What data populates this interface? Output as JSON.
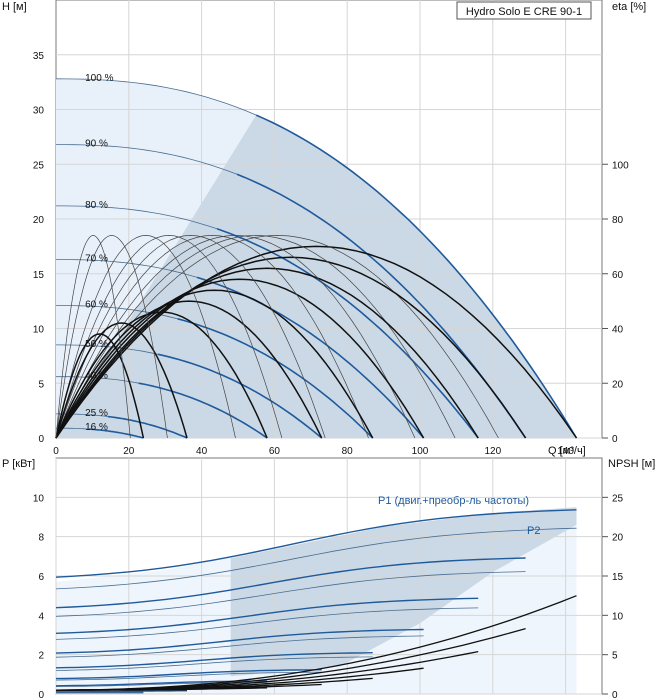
{
  "chart_data": [
    {
      "type": "line",
      "title": "Hydro Solo E CRE 90-1",
      "xlabel": "Q [м³/ч]",
      "ylabel": "H [м]",
      "y2label": "eta [%]",
      "xlim": [
        0,
        150
      ],
      "ylim": [
        0,
        40
      ],
      "y2lim": [
        0,
        160
      ],
      "x_ticks": [
        0,
        20,
        40,
        60,
        80,
        100,
        120,
        140
      ],
      "y_ticks": [
        0,
        5,
        10,
        15,
        20,
        25,
        30,
        35
      ],
      "y2_ticks": [
        0,
        20,
        40,
        60,
        80,
        100
      ],
      "speed_curves": [
        {
          "label": "100 %",
          "shutoff_head": 32.8,
          "max_flow": 143
        },
        {
          "label": "90 %",
          "shutoff_head": 26.8,
          "max_flow": 129
        },
        {
          "label": "80 %",
          "shutoff_head": 21.2,
          "max_flow": 116
        },
        {
          "label": "70 %",
          "shutoff_head": 16.3,
          "max_flow": 101
        },
        {
          "label": "60 %",
          "shutoff_head": 12.1,
          "max_flow": 87
        },
        {
          "label": "50 %",
          "shutoff_head": 8.5,
          "max_flow": 73
        },
        {
          "label": "40 %",
          "shutoff_head": 5.6,
          "max_flow": 58
        },
        {
          "label": "25 %",
          "shutoff_head": 2.2,
          "max_flow": 36
        },
        {
          "label": "16 %",
          "shutoff_head": 0.9,
          "max_flow": 24
        }
      ]
    },
    {
      "type": "line",
      "xlabel": "",
      "ylabel": "P [кВт]",
      "y2label": "NPSH [м]",
      "xlim": [
        0,
        150
      ],
      "ylim": [
        0,
        12
      ],
      "y2lim": [
        0,
        30
      ],
      "y_ticks": [
        0,
        2,
        4,
        6,
        8,
        10
      ],
      "y2_ticks": [
        0,
        5,
        10,
        15,
        20,
        25
      ],
      "series": [
        {
          "name": "P1 (двиг.+преобр-ль частоты)",
          "x": [
            0,
            30,
            60,
            90,
            120,
            143
          ],
          "values": [
            5.7,
            6.3,
            7.4,
            8.5,
            9.2,
            9.5
          ]
        },
        {
          "name": "P2",
          "x": [
            0,
            30,
            60,
            90,
            120,
            143
          ],
          "values": [
            5.1,
            5.6,
            6.6,
            7.6,
            8.4,
            8.8
          ]
        }
      ],
      "annotations": [
        "P1 (двиг.+преобр-ль частоты)",
        "P2"
      ]
    }
  ]
}
